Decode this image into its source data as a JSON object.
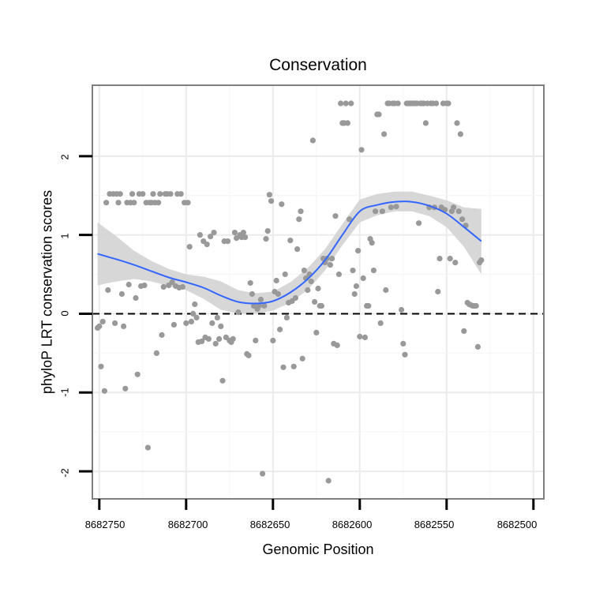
{
  "chart_data": {
    "type": "scatter",
    "title": "Conservation",
    "xlabel": "Genomic Position",
    "ylabel": "phyloP LRT conservation scores",
    "x_reversed": true,
    "xlim": [
      8682754,
      8682494
    ],
    "ylim": [
      -2.35,
      2.9
    ],
    "x_ticks": [
      8682750,
      8682700,
      8682650,
      8682600,
      8682550,
      8682500
    ],
    "x_tick_labels": [
      "8682750",
      "8682700",
      "8682650",
      "8682600",
      "8682550",
      "8682500"
    ],
    "y_ticks": [
      -2,
      -1,
      0,
      1,
      2
    ],
    "y_tick_labels": [
      "-2",
      "-1",
      "0",
      "1",
      "2"
    ],
    "reference_line": {
      "y": 0,
      "style": "dashed"
    },
    "colors": {
      "points": "#999999",
      "smooth": "#3366FF",
      "band": "#D3D3D3",
      "panel_border": "#7F7F7F",
      "grid": "#EBEBEB"
    },
    "points": [
      [
        8682751,
        -0.18
      ],
      [
        8682750,
        -0.16
      ],
      [
        8682749,
        -0.67
      ],
      [
        8682748,
        -0.1
      ],
      [
        8682747,
        -0.98
      ],
      [
        8682746,
        1.41
      ],
      [
        8682745,
        0.3
      ],
      [
        8682744,
        1.52
      ],
      [
        8682742,
        1.52
      ],
      [
        8682741,
        -0.12
      ],
      [
        8682740,
        1.52
      ],
      [
        8682739,
        1.41
      ],
      [
        8682738,
        1.52
      ],
      [
        8682737,
        0.25
      ],
      [
        8682736,
        -0.16
      ],
      [
        8682735,
        -0.95
      ],
      [
        8682734,
        1.41
      ],
      [
        8682733,
        0.37
      ],
      [
        8682732,
        1.41
      ],
      [
        8682731,
        1.52
      ],
      [
        8682730,
        1.41
      ],
      [
        8682729,
        0.2
      ],
      [
        8682728,
        -0.77
      ],
      [
        8682727,
        1.52
      ],
      [
        8682726,
        0.35
      ],
      [
        8682725,
        1.52
      ],
      [
        8682724,
        0.36
      ],
      [
        8682723,
        1.41
      ],
      [
        8682722,
        -1.7
      ],
      [
        8682721,
        1.41
      ],
      [
        8682720,
        1.41
      ],
      [
        8682719,
        1.52
      ],
      [
        8682718,
        1.41
      ],
      [
        8682717,
        -0.5
      ],
      [
        8682716,
        1.41
      ],
      [
        8682715,
        1.52
      ],
      [
        8682714,
        -0.27
      ],
      [
        8682713,
        0.34
      ],
      [
        8682712,
        1.52
      ],
      [
        8682711,
        1.52
      ],
      [
        8682710,
        0.36
      ],
      [
        8682709,
        1.52
      ],
      [
        8682708,
        0.4
      ],
      [
        8682707,
        -0.14
      ],
      [
        8682706,
        0.35
      ],
      [
        8682705,
        1.52
      ],
      [
        8682704,
        0.33
      ],
      [
        8682703,
        1.52
      ],
      [
        8682702,
        0.34
      ],
      [
        8682701,
        1.41
      ],
      [
        8682700,
        -0.12
      ],
      [
        8682699,
        1.41
      ],
      [
        8682698,
        0.85
      ],
      [
        8682697,
        -0.1
      ],
      [
        8682696,
        0.0
      ],
      [
        8682695,
        0.12
      ],
      [
        8682694,
        -0.05
      ],
      [
        8682693,
        -0.36
      ],
      [
        8682692,
        1.0
      ],
      [
        8682691,
        -0.35
      ],
      [
        8682690,
        0.92
      ],
      [
        8682689,
        -0.3
      ],
      [
        8682688,
        0.88
      ],
      [
        8682687,
        -0.32
      ],
      [
        8682686,
        0.98
      ],
      [
        8682685,
        -0.12
      ],
      [
        8682684,
        1.03
      ],
      [
        8682683,
        -0.38
      ],
      [
        8682682,
        -0.05
      ],
      [
        8682681,
        -0.32
      ],
      [
        8682680,
        -0.16
      ],
      [
        8682679,
        -0.85
      ],
      [
        8682678,
        0.92
      ],
      [
        8682677,
        -0.3
      ],
      [
        8682676,
        0.92
      ],
      [
        8682675,
        -0.34
      ],
      [
        8682674,
        -0.36
      ],
      [
        8682673,
        -0.32
      ],
      [
        8682672,
        1.03
      ],
      [
        8682671,
        0.96
      ],
      [
        8682670,
        0.02
      ],
      [
        8682669,
        1.0
      ],
      [
        8682668,
        0.97
      ],
      [
        8682667,
        1.03
      ],
      [
        8682666,
        0.97
      ],
      [
        8682665,
        -0.51
      ],
      [
        8682664,
        -0.53
      ],
      [
        8682663,
        0.39
      ],
      [
        8682662,
        0.25
      ],
      [
        8682661,
        0.1
      ],
      [
        8682660,
        -0.34
      ],
      [
        8682659,
        0.06
      ],
      [
        8682658,
        0.1
      ],
      [
        8682657,
        0.18
      ],
      [
        8682656,
        -2.03
      ],
      [
        8682655,
        0.1
      ],
      [
        8682654,
        0.95
      ],
      [
        8682653,
        1.05
      ],
      [
        8682652,
        1.51
      ],
      [
        8682651,
        1.43
      ],
      [
        8682650,
        -0.34
      ],
      [
        8682649,
        0.28
      ],
      [
        8682648,
        0.42
      ],
      [
        8682647,
        0.25
      ],
      [
        8682646,
        -0.2
      ],
      [
        8682645,
        1.39
      ],
      [
        8682644,
        -0.68
      ],
      [
        8682643,
        0.5
      ],
      [
        8682642,
        -0.05
      ],
      [
        8682641,
        0.14
      ],
      [
        8682640,
        0.93
      ],
      [
        8682639,
        0.16
      ],
      [
        8682638,
        -0.67
      ],
      [
        8682637,
        0.2
      ],
      [
        8682636,
        0.82
      ],
      [
        8682635,
        1.2
      ],
      [
        8682634,
        1.3
      ],
      [
        8682633,
        -0.57
      ],
      [
        8682632,
        0.55
      ],
      [
        8682631,
        0.45
      ],
      [
        8682630,
        0.3
      ],
      [
        8682629,
        0.5
      ],
      [
        8682628,
        0.41
      ],
      [
        8682627,
        2.2
      ],
      [
        8682626,
        0.15
      ],
      [
        8682625,
        -0.24
      ],
      [
        8682624,
        0.32
      ],
      [
        8682623,
        0.1
      ],
      [
        8682622,
        0.1
      ],
      [
        8682621,
        0.7
      ],
      [
        8682620,
        0.65
      ],
      [
        8682619,
        0.7
      ],
      [
        8682618,
        -2.12
      ],
      [
        8682617,
        0.62
      ],
      [
        8682616,
        0.7
      ],
      [
        8682615,
        -0.38
      ],
      [
        8682614,
        1.24
      ],
      [
        8682613,
        -0.4
      ],
      [
        8682612,
        0.5
      ],
      [
        8682611,
        2.67
      ],
      [
        8682610,
        2.42
      ],
      [
        8682609,
        2.42
      ],
      [
        8682608,
        2.67
      ],
      [
        8682607,
        2.42
      ],
      [
        8682606,
        1.2
      ],
      [
        8682605,
        2.67
      ],
      [
        8682604,
        0.55
      ],
      [
        8682603,
        0.25
      ],
      [
        8682602,
        0.35
      ],
      [
        8682601,
        0.8
      ],
      [
        8682600,
        -0.29
      ],
      [
        8682599,
        2.08
      ],
      [
        8682598,
        0.45
      ],
      [
        8682597,
        -0.3
      ],
      [
        8682596,
        0.1
      ],
      [
        8682595,
        0.1
      ],
      [
        8682594,
        0.95
      ],
      [
        8682593,
        0.9
      ],
      [
        8682592,
        0.55
      ],
      [
        8682591,
        1.3
      ],
      [
        8682590,
        2.53
      ],
      [
        8682589,
        2.53
      ],
      [
        8682588,
        -0.12
      ],
      [
        8682587,
        1.3
      ],
      [
        8682586,
        2.28
      ],
      [
        8682585,
        0.3
      ],
      [
        8682584,
        2.67
      ],
      [
        8682583,
        2.67
      ],
      [
        8682582,
        1.35
      ],
      [
        8682581,
        2.67
      ],
      [
        8682580,
        2.67
      ],
      [
        8682579,
        1.36
      ],
      [
        8682578,
        2.67
      ],
      [
        8682576,
        0.05
      ],
      [
        8682575,
        -0.38
      ],
      [
        8682574,
        -0.52
      ],
      [
        8682573,
        2.67
      ],
      [
        8682572,
        2.67
      ],
      [
        8682571,
        2.67
      ],
      [
        8682570,
        2.67
      ],
      [
        8682569,
        2.67
      ],
      [
        8682568,
        2.67
      ],
      [
        8682567,
        2.67
      ],
      [
        8682566,
        1.15
      ],
      [
        8682565,
        2.67
      ],
      [
        8682564,
        2.67
      ],
      [
        8682563,
        2.67
      ],
      [
        8682562,
        2.42
      ],
      [
        8682561,
        2.67
      ],
      [
        8682560,
        1.35
      ],
      [
        8682559,
        2.67
      ],
      [
        8682558,
        2.67
      ],
      [
        8682557,
        1.35
      ],
      [
        8682556,
        2.67
      ],
      [
        8682555,
        0.28
      ],
      [
        8682554,
        0.7
      ],
      [
        8682553,
        1.35
      ],
      [
        8682552,
        2.67
      ],
      [
        8682551,
        1.32
      ],
      [
        8682550,
        2.67
      ],
      [
        8682549,
        2.67
      ],
      [
        8682548,
        0.7
      ],
      [
        8682547,
        1.3
      ],
      [
        8682546,
        1.35
      ],
      [
        8682545,
        0.65
      ],
      [
        8682544,
        2.42
      ],
      [
        8682543,
        1.3
      ],
      [
        8682542,
        2.28
      ],
      [
        8682541,
        1.2
      ],
      [
        8682540,
        -0.22
      ],
      [
        8682539,
        1.12
      ],
      [
        8682538,
        0.14
      ],
      [
        8682537,
        0.12
      ],
      [
        8682536,
        0.11
      ],
      [
        8682535,
        0.1
      ],
      [
        8682534,
        0.1
      ],
      [
        8682533,
        0.1
      ],
      [
        8682532,
        -0.42
      ],
      [
        8682531,
        0.65
      ],
      [
        8682530,
        0.68
      ]
    ],
    "smooth": [
      [
        8682751,
        0.76
      ],
      [
        8682740,
        0.69
      ],
      [
        8682730,
        0.62
      ],
      [
        8682720,
        0.54
      ],
      [
        8682710,
        0.46
      ],
      [
        8682700,
        0.4
      ],
      [
        8682690,
        0.33
      ],
      [
        8682680,
        0.23
      ],
      [
        8682670,
        0.15
      ],
      [
        8682660,
        0.13
      ],
      [
        8682650,
        0.16
      ],
      [
        8682640,
        0.27
      ],
      [
        8682630,
        0.44
      ],
      [
        8682620,
        0.68
      ],
      [
        8682610,
        1.0
      ],
      [
        8682600,
        1.3
      ],
      [
        8682590,
        1.38
      ],
      [
        8682580,
        1.42
      ],
      [
        8682570,
        1.42
      ],
      [
        8682560,
        1.37
      ],
      [
        8682550,
        1.27
      ],
      [
        8682540,
        1.1
      ],
      [
        8682530,
        0.92
      ]
    ],
    "band_lower": [
      [
        8682751,
        0.36
      ],
      [
        8682740,
        0.41
      ],
      [
        8682730,
        0.44
      ],
      [
        8682720,
        0.41
      ],
      [
        8682710,
        0.35
      ],
      [
        8682700,
        0.3
      ],
      [
        8682690,
        0.19
      ],
      [
        8682680,
        0.05
      ],
      [
        8682670,
        0.0
      ],
      [
        8682660,
        0.0
      ],
      [
        8682650,
        0.04
      ],
      [
        8682640,
        0.14
      ],
      [
        8682630,
        0.3
      ],
      [
        8682620,
        0.55
      ],
      [
        8682610,
        0.87
      ],
      [
        8682600,
        1.16
      ],
      [
        8682590,
        1.25
      ],
      [
        8682580,
        1.3
      ],
      [
        8682570,
        1.3
      ],
      [
        8682560,
        1.24
      ],
      [
        8682550,
        1.1
      ],
      [
        8682540,
        0.85
      ],
      [
        8682530,
        0.5
      ]
    ],
    "band_upper": [
      [
        8682751,
        1.16
      ],
      [
        8682740,
        0.98
      ],
      [
        8682730,
        0.8
      ],
      [
        8682720,
        0.67
      ],
      [
        8682710,
        0.57
      ],
      [
        8682700,
        0.5
      ],
      [
        8682690,
        0.47
      ],
      [
        8682680,
        0.41
      ],
      [
        8682670,
        0.3
      ],
      [
        8682660,
        0.26
      ],
      [
        8682650,
        0.28
      ],
      [
        8682640,
        0.4
      ],
      [
        8682630,
        0.58
      ],
      [
        8682620,
        0.82
      ],
      [
        8682610,
        1.14
      ],
      [
        8682600,
        1.45
      ],
      [
        8682590,
        1.52
      ],
      [
        8682580,
        1.55
      ],
      [
        8682570,
        1.55
      ],
      [
        8682560,
        1.5
      ],
      [
        8682550,
        1.44
      ],
      [
        8682540,
        1.35
      ],
      [
        8682530,
        1.33
      ]
    ]
  }
}
